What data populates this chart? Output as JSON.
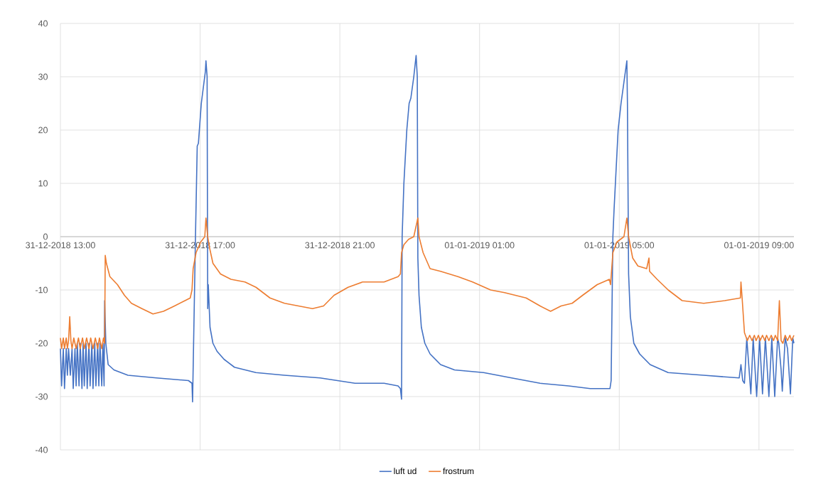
{
  "chart_data": {
    "type": "line",
    "xlim": [
      "2018-12-31T13:00",
      "2019-01-01T10:00"
    ],
    "ylim": [
      -40,
      40
    ],
    "xticks": [
      {
        "value": "2018-12-31T13:00",
        "label": "31-12-2018 13:00"
      },
      {
        "value": "2018-12-31T17:00",
        "label": "31-12-2018 17:00"
      },
      {
        "value": "2018-12-31T21:00",
        "label": "31-12-2018 21:00"
      },
      {
        "value": "2019-01-01T01:00",
        "label": "01-01-2019 01:00"
      },
      {
        "value": "2019-01-01T05:00",
        "label": "01-01-2019 05:00"
      },
      {
        "value": "2019-01-01T09:00",
        "label": "01-01-2019 09:00"
      }
    ],
    "yticks": [
      -40,
      -30,
      -20,
      -10,
      0,
      10,
      20,
      30,
      40
    ],
    "grid": true,
    "legend": "bottom",
    "marker": "none",
    "line_style": "solid",
    "series": [
      {
        "name": "luft ud",
        "color": "#4472c4",
        "x": [
          "2018-12-31T13:00",
          "2018-12-31T13:02",
          "2018-12-31T13:05",
          "2018-12-31T13:07",
          "2018-12-31T13:10",
          "2018-12-31T13:12",
          "2018-12-31T13:14",
          "2018-12-31T13:17",
          "2018-12-31T13:20",
          "2018-12-31T13:22",
          "2018-12-31T13:25",
          "2018-12-31T13:27",
          "2018-12-31T13:29",
          "2018-12-31T13:32",
          "2018-12-31T13:34",
          "2018-12-31T13:37",
          "2018-12-31T13:39",
          "2018-12-31T13:41",
          "2018-12-31T13:44",
          "2018-12-31T13:46",
          "2018-12-31T13:49",
          "2018-12-31T13:51",
          "2018-12-31T13:54",
          "2018-12-31T13:56",
          "2018-12-31T13:59",
          "2018-12-31T14:01",
          "2018-12-31T14:04",
          "2018-12-31T14:06",
          "2018-12-31T14:08",
          "2018-12-31T14:11",
          "2018-12-31T14:13",
          "2018-12-31T14:15",
          "2018-12-31T14:16",
          "2018-12-31T14:18",
          "2018-12-31T14:22",
          "2018-12-31T14:32",
          "2018-12-31T14:56",
          "2018-12-31T15:45",
          "2018-12-31T16:40",
          "2018-12-31T16:46",
          "2018-12-31T16:47",
          "2018-12-31T16:52",
          "2018-12-31T16:55",
          "2018-12-31T16:57",
          "2018-12-31T17:02",
          "2018-12-31T17:09",
          "2018-12-31T17:10",
          "2018-12-31T17:12",
          "2018-12-31T17:13",
          "2018-12-31T17:14",
          "2018-12-31T17:17",
          "2018-12-31T17:22",
          "2018-12-31T17:29",
          "2018-12-31T17:41",
          "2018-12-31T17:59",
          "2018-12-31T18:36",
          "2018-12-31T19:25",
          "2018-12-31T20:26",
          "2018-12-31T21:26",
          "2018-12-31T22:16",
          "2018-12-31T22:40",
          "2018-12-31T22:44",
          "2018-12-31T22:46",
          "2018-12-31T22:47",
          "2018-12-31T22:50",
          "2018-12-31T22:55",
          "2018-12-31T22:59",
          "2018-12-31T23:02",
          "2018-12-31T23:07",
          "2018-12-31T23:11",
          "2018-12-31T23:13",
          "2018-12-31T23:14",
          "2018-12-31T23:16",
          "2018-12-31T23:20",
          "2018-12-31T23:26",
          "2018-12-31T23:35",
          "2018-12-31T23:53",
          "2019-01-01T00:17",
          "2019-01-01T01:07",
          "2019-01-01T01:55",
          "2019-01-01T02:44",
          "2019-01-01T03:33",
          "2019-01-01T04:10",
          "2019-01-01T04:44",
          "2019-01-01T04:46",
          "2019-01-01T04:49",
          "2019-01-01T04:51",
          "2019-01-01T04:58",
          "2019-01-01T05:03",
          "2019-01-01T05:08",
          "2019-01-01T05:13",
          "2019-01-01T05:14",
          "2019-01-01T05:16",
          "2019-01-01T05:19",
          "2019-01-01T05:25",
          "2019-01-01T05:35",
          "2019-01-01T05:53",
          "2019-01-01T06:24",
          "2019-01-01T07:25",
          "2019-01-01T08:26",
          "2019-01-01T08:29",
          "2019-01-01T08:32",
          "2019-01-01T08:35",
          "2019-01-01T08:39",
          "2019-01-01T08:46",
          "2019-01-01T08:50",
          "2019-01-01T08:56",
          "2019-01-01T09:01",
          "2019-01-01T09:06",
          "2019-01-01T09:11",
          "2019-01-01T09:17",
          "2019-01-01T09:22",
          "2019-01-01T09:27",
          "2019-01-01T09:32",
          "2019-01-01T09:34",
          "2019-01-01T09:38",
          "2019-01-01T09:40",
          "2019-01-01T09:45",
          "2019-01-01T09:49",
          "2019-01-01T09:54",
          "2019-01-01T09:58",
          "2019-01-01T10:00"
        ],
        "values": [
          -21,
          -28,
          -21,
          -28.5,
          -21,
          -26,
          -21,
          -26,
          -21,
          -28.5,
          -21,
          -28,
          -20,
          -28,
          -20,
          -28.5,
          -20,
          -28,
          -20,
          -28.5,
          -20,
          -28,
          -20,
          -28.5,
          -20,
          -28,
          -20,
          -28,
          -20,
          -28,
          -20,
          -28,
          -12,
          -20,
          -24,
          -25,
          -26,
          -26.5,
          -27,
          -27.5,
          -31,
          0,
          17,
          17.5,
          25,
          31,
          33,
          30,
          -13.5,
          -9,
          -17,
          -20,
          -21.5,
          -23,
          -24.5,
          -25.5,
          -26,
          -26.5,
          -27.5,
          -27.5,
          -28,
          -28.5,
          -30.5,
          0,
          10,
          20,
          25,
          26,
          30,
          34,
          30,
          -4,
          -11,
          -17,
          -20,
          -22,
          -24,
          -25,
          -25.5,
          -26.5,
          -27.5,
          -28,
          -28.5,
          -28.5,
          -27,
          0,
          5,
          20,
          25,
          29,
          33,
          25,
          -7,
          -15,
          -20,
          -22,
          -24,
          -25.5,
          -26,
          -26.5,
          -24,
          -27,
          -27.5,
          -19,
          -29.5,
          -19,
          -30,
          -19,
          -29.5,
          -19,
          -30,
          -19,
          -30,
          -19,
          -20,
          -25,
          -29,
          -19,
          -21,
          -29.5,
          -19,
          -20
        ]
      },
      {
        "name": "frostrum",
        "color": "#ed7d31",
        "x": [
          "2018-12-31T13:00",
          "2018-12-31T13:02",
          "2018-12-31T13:05",
          "2018-12-31T13:07",
          "2018-12-31T13:10",
          "2018-12-31T13:12",
          "2018-12-31T13:14",
          "2018-12-31T13:16",
          "2018-12-31T13:18",
          "2018-12-31T13:20",
          "2018-12-31T13:23",
          "2018-12-31T13:27",
          "2018-12-31T13:31",
          "2018-12-31T13:34",
          "2018-12-31T13:38",
          "2018-12-31T13:41",
          "2018-12-31T13:45",
          "2018-12-31T13:49",
          "2018-12-31T13:52",
          "2018-12-31T13:56",
          "2018-12-31T14:00",
          "2018-12-31T14:04",
          "2018-12-31T14:07",
          "2018-12-31T14:11",
          "2018-12-31T14:14",
          "2018-12-31T14:16",
          "2018-12-31T14:17",
          "2018-12-31T14:19",
          "2018-12-31T14:25",
          "2018-12-31T14:38",
          "2018-12-31T14:50",
          "2018-12-31T15:02",
          "2018-12-31T15:20",
          "2018-12-31T15:39",
          "2018-12-31T15:57",
          "2018-12-31T16:16",
          "2018-12-31T16:34",
          "2018-12-31T16:43",
          "2018-12-31T16:46",
          "2018-12-31T16:48",
          "2018-12-31T16:53",
          "2018-12-31T17:01",
          "2018-12-31T17:08",
          "2018-12-31T17:10",
          "2018-12-31T17:13",
          "2018-12-31T17:16",
          "2018-12-31T17:22",
          "2018-12-31T17:35",
          "2018-12-31T17:53",
          "2018-12-31T18:17",
          "2018-12-31T18:36",
          "2018-12-31T19:00",
          "2018-12-31T19:25",
          "2018-12-31T19:49",
          "2018-12-31T20:13",
          "2018-12-31T20:32",
          "2018-12-31T20:50",
          "2018-12-31T21:14",
          "2018-12-31T21:39",
          "2018-12-31T22:16",
          "2018-12-31T22:40",
          "2018-12-31T22:44",
          "2018-12-31T22:46",
          "2018-12-31T22:50",
          "2018-12-31T22:58",
          "2018-12-31T23:07",
          "2018-12-31T23:14",
          "2018-12-31T23:16",
          "2018-12-31T23:23",
          "2018-12-31T23:35",
          "2018-12-31T23:53",
          "2019-01-01T00:23",
          "2019-01-01T00:48",
          "2019-01-01T01:19",
          "2019-01-01T01:43",
          "2019-01-01T02:20",
          "2019-01-01T02:44",
          "2019-01-01T03:02",
          "2019-01-01T03:20",
          "2019-01-01T03:39",
          "2019-01-01T03:57",
          "2019-01-01T04:22",
          "2019-01-01T04:43",
          "2019-01-01T04:45",
          "2019-01-01T04:49",
          "2019-01-01T04:56",
          "2019-01-01T05:08",
          "2019-01-01T05:13",
          "2019-01-01T05:16",
          "2019-01-01T05:23",
          "2019-01-01T05:32",
          "2019-01-01T05:47",
          "2019-01-01T05:51",
          "2019-01-01T05:52",
          "2019-01-01T06:05",
          "2019-01-01T06:24",
          "2019-01-01T06:48",
          "2019-01-01T07:25",
          "2019-01-01T08:01",
          "2019-01-01T08:28",
          "2019-01-01T08:29",
          "2019-01-01T08:31",
          "2019-01-01T08:35",
          "2019-01-01T08:40",
          "2019-01-01T08:44",
          "2019-01-01T08:48",
          "2019-01-01T08:52",
          "2019-01-01T08:55",
          "2019-01-01T08:59",
          "2019-01-01T09:02",
          "2019-01-01T09:06",
          "2019-01-01T09:10",
          "2019-01-01T09:13",
          "2019-01-01T09:17",
          "2019-01-01T09:21",
          "2019-01-01T09:25",
          "2019-01-01T09:28",
          "2019-01-01T09:32",
          "2019-01-01T09:35",
          "2019-01-01T09:38",
          "2019-01-01T09:41",
          "2019-01-01T09:45",
          "2019-01-01T09:49",
          "2019-01-01T09:53",
          "2019-01-01T09:56",
          "2019-01-01T10:00"
        ],
        "values": [
          -19,
          -21,
          -19,
          -21,
          -19,
          -21,
          -19.5,
          -15,
          -19.5,
          -21,
          -19,
          -21,
          -19,
          -21,
          -19,
          -21,
          -19,
          -21,
          -19,
          -21,
          -19,
          -21,
          -19,
          -21,
          -19,
          -20,
          -3.5,
          -5,
          -7.5,
          -9,
          -11,
          -12.5,
          -13.5,
          -14.5,
          -14,
          -13,
          -12,
          -11.5,
          -10,
          -6,
          -3,
          -1,
          0,
          3.5,
          0,
          -2,
          -5,
          -7,
          -8,
          -8.5,
          -9.5,
          -11.5,
          -12.5,
          -13,
          -13.5,
          -13,
          -11,
          -9.5,
          -8.5,
          -8.5,
          -7.5,
          -7,
          -3,
          -1.5,
          -0.5,
          0,
          3.5,
          0,
          -3,
          -6,
          -6.5,
          -7.5,
          -8.5,
          -10,
          -10.5,
          -11.5,
          -13,
          -14,
          -13,
          -12.5,
          -11,
          -9,
          -8,
          -9,
          -3,
          -1,
          0,
          3.5,
          0,
          -4,
          -5.5,
          -6,
          -4,
          -6.5,
          -8,
          -10,
          -12,
          -12.5,
          -12,
          -11.5,
          -8.5,
          -11.5,
          -18,
          -19.5,
          -18.5,
          -19.5,
          -18.5,
          -19.5,
          -18.5,
          -19.5,
          -18.5,
          -19.5,
          -18.5,
          -19.5,
          -18.5,
          -19.5,
          -18.5,
          -19.5,
          -12,
          -19.5,
          -20,
          -18.5,
          -19.5,
          -18.5,
          -19.5,
          -18.5
        ]
      }
    ]
  }
}
